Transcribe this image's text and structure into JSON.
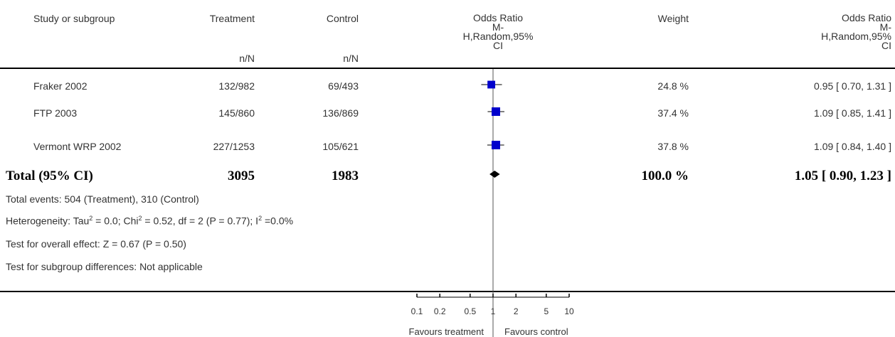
{
  "header": {
    "study": "Study or subgroup",
    "treatment": "Treatment",
    "control": "Control",
    "treatment_sub": "n/N",
    "control_sub": "n/N",
    "or_title": "Odds Ratio",
    "or_sub1": "M-",
    "or_sub2": "H,Random,95%",
    "or_sub3": "CI",
    "weight": "Weight",
    "or2_title": "Odds Ratio",
    "or2_sub1": "M-",
    "or2_sub2": "H,Random,95%",
    "or2_sub3": "CI"
  },
  "rows": [
    {
      "study": "Fraker 2002",
      "treatment": "132/982",
      "control": "69/493",
      "weight": "24.8 %",
      "ci_text": "0.95 [ 0.70, 1.31 ]"
    },
    {
      "study": "FTP 2003",
      "treatment": "145/860",
      "control": "136/869",
      "weight": "37.4 %",
      "ci_text": "1.09 [ 0.85, 1.41 ]"
    },
    {
      "study": "Vermont WRP 2002",
      "treatment": "227/1253",
      "control": "105/621",
      "weight": "37.8 %",
      "ci_text": "1.09 [ 0.84, 1.40 ]"
    }
  ],
  "total": {
    "label": "Total (95% CI)",
    "treatment": "3095",
    "control": "1983",
    "weight": "100.0 %",
    "ci_text": "1.05 [ 0.90, 1.23 ]"
  },
  "notes": {
    "events": "Total events: 504 (Treatment), 310 (Control)",
    "het_a": "Heterogeneity: Tau",
    "het_b": " = 0.0; Chi",
    "het_c": " = 0.52, df = 2 (P = 0.77); I",
    "het_d": " =0.0%",
    "sup": "2",
    "overall": "Test for overall effect: Z = 0.67 (P = 0.50)",
    "subgroup": "Test for subgroup differences: Not applicable"
  },
  "axis": {
    "favours_left": "Favours treatment",
    "favours_right": "Favours control"
  },
  "chart_data": {
    "type": "forest",
    "x_scale": "log",
    "xlim": [
      0.1,
      10
    ],
    "ticks": [
      {
        "value": 0.1,
        "label": "0.1"
      },
      {
        "value": 0.2,
        "label": "0.2"
      },
      {
        "value": 0.5,
        "label": "0.5"
      },
      {
        "value": 1,
        "label": "1"
      },
      {
        "value": 2,
        "label": "2"
      },
      {
        "value": 5,
        "label": "5"
      },
      {
        "value": 10,
        "label": "10"
      }
    ],
    "studies": [
      {
        "study": "Fraker 2002",
        "or": 0.95,
        "lower": 0.7,
        "upper": 1.31,
        "weight": 24.8
      },
      {
        "study": "FTP 2003",
        "or": 1.09,
        "lower": 0.85,
        "upper": 1.41,
        "weight": 37.4
      },
      {
        "study": "Vermont WRP 2002",
        "or": 1.09,
        "lower": 0.84,
        "upper": 1.4,
        "weight": 37.8
      }
    ],
    "pooled": {
      "or": 1.05,
      "lower": 0.9,
      "upper": 1.23
    },
    "colors": {
      "study_box": "#0000cc",
      "pooled_diamond": "#000000",
      "lines": "#000000"
    }
  }
}
